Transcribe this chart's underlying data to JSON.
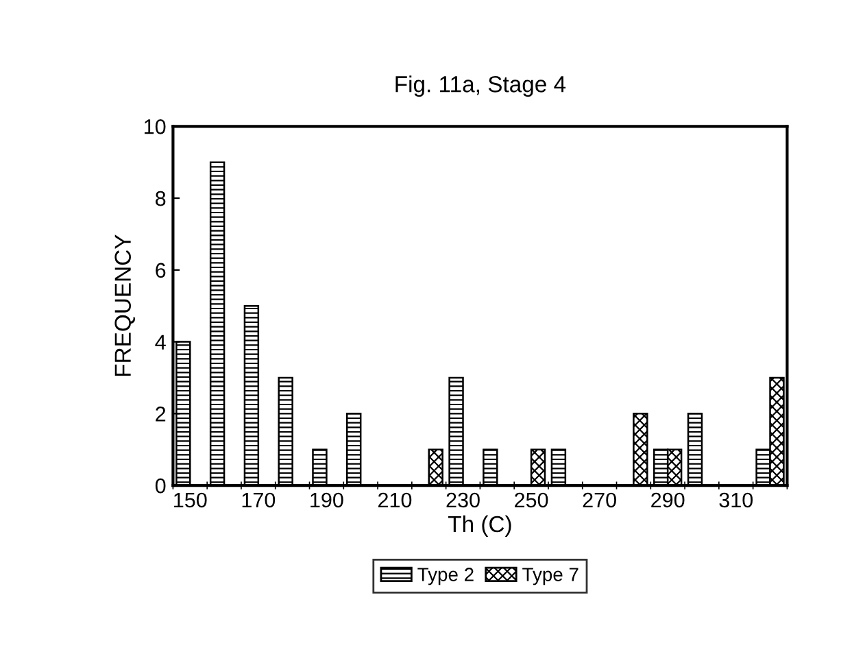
{
  "chart_data": {
    "type": "bar",
    "title": "Fig. 11a, Stage 4",
    "xlabel": "Th (C)",
    "ylabel": "FREQUENCY",
    "categories": [
      "150",
      null,
      "170",
      null,
      "190",
      null,
      "210",
      null,
      "230",
      null,
      "250",
      null,
      "270",
      null,
      "290",
      null,
      "310",
      null
    ],
    "series": [
      {
        "name": "Type 2",
        "color": "#000000",
        "values": [
          4,
          9,
          5,
          3,
          1,
          2,
          0,
          0,
          3,
          1,
          0,
          1,
          0,
          0,
          1,
          2,
          0,
          1
        ]
      },
      {
        "name": "Type 7",
        "color": "#000000",
        "values": [
          0,
          0,
          0,
          0,
          0,
          0,
          0,
          1,
          0,
          0,
          1,
          0,
          0,
          2,
          1,
          0,
          0,
          3
        ]
      }
    ],
    "ylim": [
      0,
      10
    ],
    "yticks": [
      0,
      2,
      4,
      6,
      8,
      10
    ],
    "grid": false,
    "legend": "bottom"
  }
}
